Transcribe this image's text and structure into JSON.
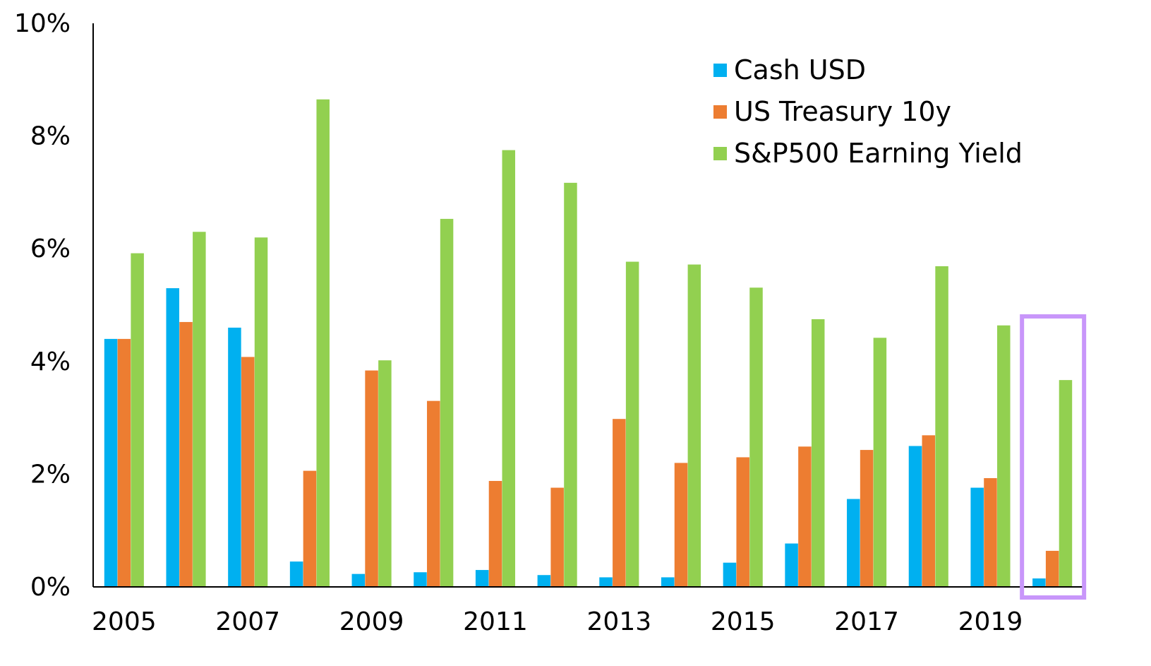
{
  "chart_data": {
    "type": "bar",
    "categories": [
      "2005",
      "2006",
      "2007",
      "2008",
      "2009",
      "2010",
      "2011",
      "2012",
      "2013",
      "2014",
      "2015",
      "2016",
      "2017",
      "2018",
      "2019",
      "2020"
    ],
    "x_tick_labels": [
      "2005",
      "2007",
      "2009",
      "2011",
      "2013",
      "2015",
      "2017",
      "2019"
    ],
    "y_tick_labels": [
      "0%",
      "2%",
      "4%",
      "6%",
      "8%",
      "10%"
    ],
    "y_ticks": [
      0,
      2,
      4,
      6,
      8,
      10
    ],
    "ylim": [
      0,
      10
    ],
    "title": "",
    "xlabel": "",
    "ylabel": "",
    "grid": false,
    "legend_position": "top-right",
    "series": [
      {
        "name": "Cash USD",
        "color": "#00B0F0",
        "values": [
          4.4,
          5.3,
          4.6,
          0.45,
          0.23,
          0.26,
          0.3,
          0.21,
          0.17,
          0.17,
          0.43,
          0.77,
          1.56,
          2.5,
          1.76,
          0.15
        ]
      },
      {
        "name": "US Treasury 10y",
        "color": "#ED7D31",
        "values": [
          4.4,
          4.7,
          4.08,
          2.06,
          3.84,
          3.3,
          1.88,
          1.76,
          2.98,
          2.2,
          2.3,
          2.49,
          2.43,
          2.69,
          1.93,
          0.64
        ]
      },
      {
        "name": "S&P500 Earning Yield",
        "color": "#92D050",
        "values": [
          5.92,
          6.3,
          6.2,
          8.65,
          4.02,
          6.53,
          7.75,
          7.17,
          5.77,
          5.72,
          5.31,
          4.75,
          4.42,
          5.69,
          4.64,
          3.67
        ]
      }
    ],
    "highlight": {
      "category": "2020",
      "color": "#C896FA"
    }
  }
}
